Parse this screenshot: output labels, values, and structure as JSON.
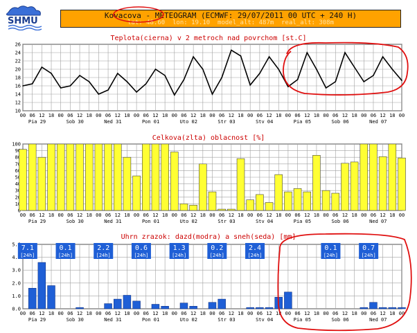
{
  "header": {
    "location": "Kovacova",
    "title_rest": " - METEOGRAM (ECMWF: 29/07/2011 00 UTC + 240 H)",
    "subtitle": "lat: 48.60  lon: 19.10  model_alt: 487m  real_alt: 308m",
    "logo_text": "SHMU"
  },
  "x_axis": {
    "hour_labels": [
      "00",
      "06",
      "12",
      "18",
      "00",
      "06",
      "12",
      "18",
      "00",
      "06",
      "12",
      "18",
      "00",
      "06",
      "12",
      "18",
      "00",
      "06",
      "12",
      "18",
      "00",
      "06",
      "12",
      "18",
      "00",
      "06",
      "12",
      "18",
      "00",
      "06",
      "12",
      "18",
      "00",
      "06",
      "12",
      "18",
      "00",
      "06",
      "12",
      "18",
      "00"
    ],
    "day_labels": [
      "Pia 29",
      "Sob 30",
      "Ned 31",
      "Pon 01",
      "Uto 02",
      "Str 03",
      "Stv 04",
      "Pia 05",
      "Sob 06",
      "Ned 07"
    ]
  },
  "colors": {
    "accent_orange": "#ffa200",
    "title_red": "#cc0000",
    "cloud_yellow": "#ffff33",
    "precip_blue": "#1f5fd6",
    "annotation_red": "#e01010",
    "grid": "#a0a0a0"
  },
  "chart_data": [
    {
      "type": "line",
      "title": "Teplota(cierna) v 2 metroch nad povrchom [st.C]",
      "ylim": [
        10,
        26
      ],
      "yticks": [
        10,
        12,
        14,
        16,
        18,
        20,
        22,
        24,
        26
      ],
      "series": [
        {
          "values": [
            16,
            16.5,
            20.5,
            19,
            15.5,
            16,
            18.5,
            17,
            14,
            15,
            19,
            17,
            14.5,
            16.5,
            20,
            18.5,
            13.8,
            17.5,
            23,
            20,
            14,
            18,
            24.6,
            23.2,
            16.2,
            19,
            23,
            20,
            15.8,
            17.5,
            24,
            20,
            15.5,
            17,
            24,
            20.5,
            17,
            18.5,
            23,
            20,
            17.3
          ]
        }
      ]
    },
    {
      "type": "bar",
      "title": "Celkova(zlta) oblacnost [%]",
      "ylim": [
        0,
        100
      ],
      "yticks": [
        0,
        10,
        20,
        30,
        40,
        50,
        60,
        70,
        80,
        90,
        100
      ],
      "values": [
        92,
        100,
        80,
        100,
        100,
        100,
        100,
        100,
        100,
        100,
        100,
        80,
        52,
        100,
        100,
        100,
        88,
        10,
        8,
        70,
        28,
        2,
        2,
        78,
        16,
        24,
        12,
        54,
        28,
        33,
        28,
        83,
        30,
        26,
        71,
        73,
        100,
        100,
        81,
        100,
        79
      ]
    },
    {
      "type": "bar",
      "title": "Uhrn zrazok: dazd(modra) a sneh(seda) [mm]",
      "ylim": [
        0,
        5.0
      ],
      "yticks": [
        "0.0",
        "1.0",
        "2.0",
        "3.0",
        "4.0",
        "5.0"
      ],
      "values": [
        0,
        1.6,
        3.6,
        1.8,
        0,
        0,
        0.1,
        0,
        0,
        0.4,
        0.75,
        1.05,
        0.6,
        0,
        0.35,
        0.2,
        0,
        0.45,
        0.2,
        0,
        0.5,
        0.75,
        0,
        0,
        0.1,
        0.1,
        0.1,
        0.9,
        1.3,
        0,
        0,
        0,
        0,
        0,
        0,
        0,
        0.1,
        0.5,
        0.1,
        0.1,
        0.1
      ],
      "daily_totals": [
        {
          "value": "7.1",
          "unit": "[24h]",
          "day_index": 0
        },
        {
          "value": "0.1",
          "unit": "[24h]",
          "day_index": 1
        },
        {
          "value": "2.2",
          "unit": "[24h]",
          "day_index": 2
        },
        {
          "value": "0.6",
          "unit": "[24h]",
          "day_index": 3
        },
        {
          "value": "1.3",
          "unit": "[24h]",
          "day_index": 4
        },
        {
          "value": "0.2",
          "unit": "[24h]",
          "day_index": 5
        },
        {
          "value": "2.4",
          "unit": "[24h]",
          "day_index": 6
        },
        {
          "value": "0.1",
          "unit": "[24h]",
          "day_index": 8
        },
        {
          "value": "0.7",
          "unit": "[24h]",
          "day_index": 9
        }
      ]
    }
  ]
}
